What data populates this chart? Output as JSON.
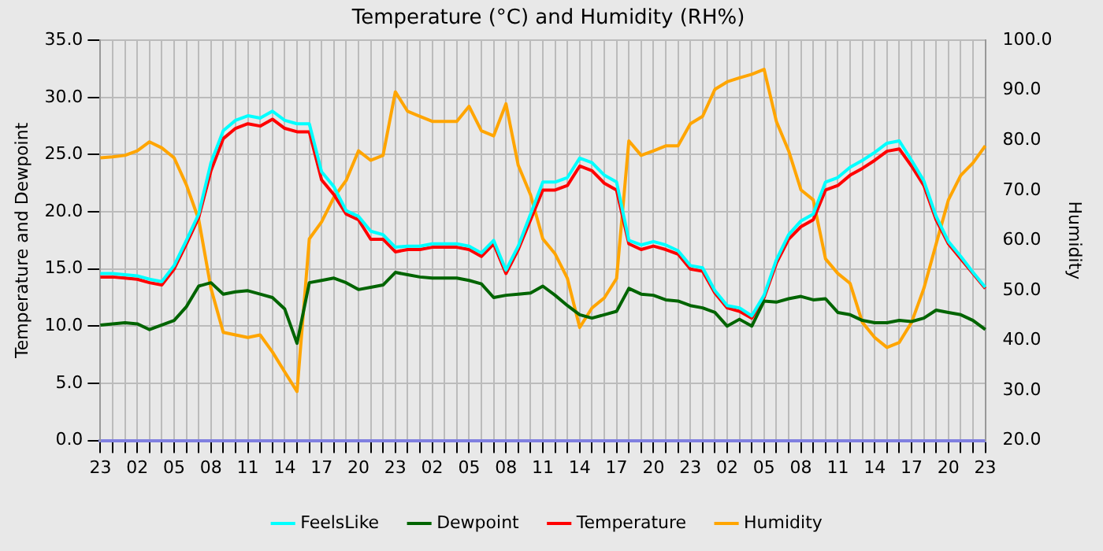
{
  "chart_data": {
    "type": "line",
    "title": "Temperature (°C) and Humidity (RH%)",
    "ylabel": "Temperature and Dewpoint",
    "y2label": "Humidity",
    "categories": [
      "23",
      null,
      null,
      "02",
      null,
      null,
      "05",
      null,
      null,
      "08",
      null,
      null,
      "11",
      null,
      null,
      "14",
      null,
      null,
      "17",
      null,
      null,
      "20",
      null,
      null,
      "23",
      null,
      null,
      "02",
      null,
      null,
      "05",
      null,
      null,
      "08",
      null,
      null,
      "11",
      null,
      null,
      "14",
      null,
      null,
      "17",
      null,
      null,
      "20",
      null,
      null,
      "23",
      null,
      null,
      "02",
      null,
      null,
      "05",
      null,
      null,
      "08",
      null,
      null,
      "11",
      null,
      null,
      "14",
      null,
      null,
      "17",
      null,
      null,
      "20",
      null,
      null,
      "23"
    ],
    "ylim": [
      0,
      35
    ],
    "yticks": [
      {
        "value": 0,
        "label": "0.0"
      },
      {
        "value": 5,
        "label": "5.0"
      },
      {
        "value": 10,
        "label": "10.0"
      },
      {
        "value": 15,
        "label": "15.0"
      },
      {
        "value": 20,
        "label": "20.0"
      },
      {
        "value": 25,
        "label": "25.0"
      },
      {
        "value": 30,
        "label": "30.0"
      },
      {
        "value": 35,
        "label": "35.0"
      }
    ],
    "y2lim": [
      20,
      100
    ],
    "y2ticks": [
      {
        "value": 20,
        "label": "20.0"
      },
      {
        "value": 30,
        "label": "30.0"
      },
      {
        "value": 40,
        "label": "40.0"
      },
      {
        "value": 50,
        "label": "50.0"
      },
      {
        "value": 60,
        "label": "60.0"
      },
      {
        "value": 70,
        "label": "70.0"
      },
      {
        "value": 80,
        "label": "80.0"
      },
      {
        "value": 90,
        "label": "90.0"
      },
      {
        "value": 100,
        "label": "100.0"
      }
    ],
    "grid": true,
    "legend": "bottom",
    "marker": "none",
    "line_style": "solid",
    "series": [
      {
        "name": "FeelsLike",
        "color": "#00ffff",
        "values": [
          14.6,
          14.6,
          14.5,
          14.4,
          14.1,
          13.9,
          15.3,
          17.5,
          19.8,
          24.3,
          27.1,
          28.0,
          28.4,
          28.2,
          28.8,
          28.0,
          27.7,
          27.7,
          23.5,
          22.2,
          20.1,
          19.6,
          18.3,
          18.0,
          16.9,
          17.0,
          17.0,
          17.2,
          17.2,
          17.2,
          17.0,
          16.4,
          17.5,
          14.9,
          17.0,
          19.8,
          22.6,
          22.6,
          23.0,
          24.7,
          24.3,
          23.2,
          22.6,
          17.5,
          17.1,
          17.4,
          17.1,
          16.6,
          15.3,
          15.1,
          13.1,
          11.8,
          11.6,
          10.9,
          12.7,
          15.8,
          18.0,
          19.2,
          19.8,
          22.6,
          23.0,
          23.9,
          24.5,
          25.2,
          26.0,
          26.2,
          24.5,
          22.7,
          19.6,
          17.4,
          16.1,
          14.7,
          13.4
        ]
      },
      {
        "name": "Dewpoint",
        "color": "#006400",
        "values": [
          10.1,
          10.2,
          10.3,
          10.2,
          9.7,
          10.1,
          10.5,
          11.7,
          13.5,
          13.8,
          12.8,
          13.0,
          13.1,
          12.8,
          12.5,
          11.5,
          8.5,
          13.8,
          14.0,
          14.2,
          13.8,
          13.2,
          13.4,
          13.6,
          14.7,
          14.5,
          14.3,
          14.2,
          14.2,
          14.2,
          14.0,
          13.7,
          12.5,
          12.7,
          12.8,
          12.9,
          13.5,
          12.7,
          11.8,
          11.0,
          10.7,
          11.0,
          11.3,
          13.3,
          12.8,
          12.7,
          12.3,
          12.2,
          11.8,
          11.6,
          11.2,
          10.0,
          10.6,
          10.0,
          12.2,
          12.1,
          12.4,
          12.6,
          12.3,
          12.4,
          11.2,
          11.0,
          10.5,
          10.3,
          10.3,
          10.5,
          10.4,
          10.7,
          11.4,
          11.2,
          11.0,
          10.5,
          9.7
        ]
      },
      {
        "name": "Temperature",
        "color": "#ff0000",
        "values": [
          14.3,
          14.3,
          14.2,
          14.1,
          13.8,
          13.6,
          15.0,
          17.2,
          19.5,
          23.6,
          26.4,
          27.3,
          27.7,
          27.5,
          28.1,
          27.3,
          27.0,
          27.0,
          22.8,
          21.5,
          19.8,
          19.3,
          17.6,
          17.6,
          16.5,
          16.7,
          16.7,
          16.9,
          16.9,
          16.9,
          16.7,
          16.1,
          17.2,
          14.6,
          16.7,
          19.3,
          21.9,
          21.9,
          22.3,
          24.0,
          23.6,
          22.5,
          21.9,
          17.2,
          16.7,
          17.0,
          16.7,
          16.3,
          15.0,
          14.8,
          12.9,
          11.6,
          11.3,
          10.7,
          12.5,
          15.5,
          17.6,
          18.7,
          19.3,
          21.9,
          22.3,
          23.2,
          23.8,
          24.5,
          25.3,
          25.5,
          24.0,
          22.3,
          19.3,
          17.2,
          15.9,
          14.6,
          13.3
        ]
      },
      {
        "name": "Humidity",
        "color": "#ffa500",
        "axis": "y2",
        "values": [
          76.5,
          76.7,
          77.0,
          77.9,
          79.7,
          78.5,
          76.5,
          71.1,
          64.2,
          50.4,
          41.6,
          41.1,
          40.6,
          41.1,
          37.7,
          33.7,
          29.8,
          60.3,
          63.7,
          68.6,
          72.0,
          77.9,
          76.0,
          77.0,
          89.7,
          85.8,
          84.8,
          83.8,
          83.8,
          83.8,
          86.8,
          81.9,
          80.9,
          87.3,
          75.0,
          69.1,
          60.3,
          57.3,
          52.4,
          42.6,
          46.5,
          48.5,
          52.4,
          79.9,
          77.0,
          77.9,
          78.9,
          78.9,
          83.3,
          84.8,
          90.2,
          91.7,
          92.5,
          93.2,
          94.2,
          83.8,
          77.9,
          70.1,
          68.1,
          56.3,
          53.4,
          51.4,
          43.6,
          40.6,
          38.6,
          39.6,
          43.6,
          50.4,
          59.3,
          68.1,
          73.0,
          75.5,
          78.9
        ]
      }
    ]
  }
}
